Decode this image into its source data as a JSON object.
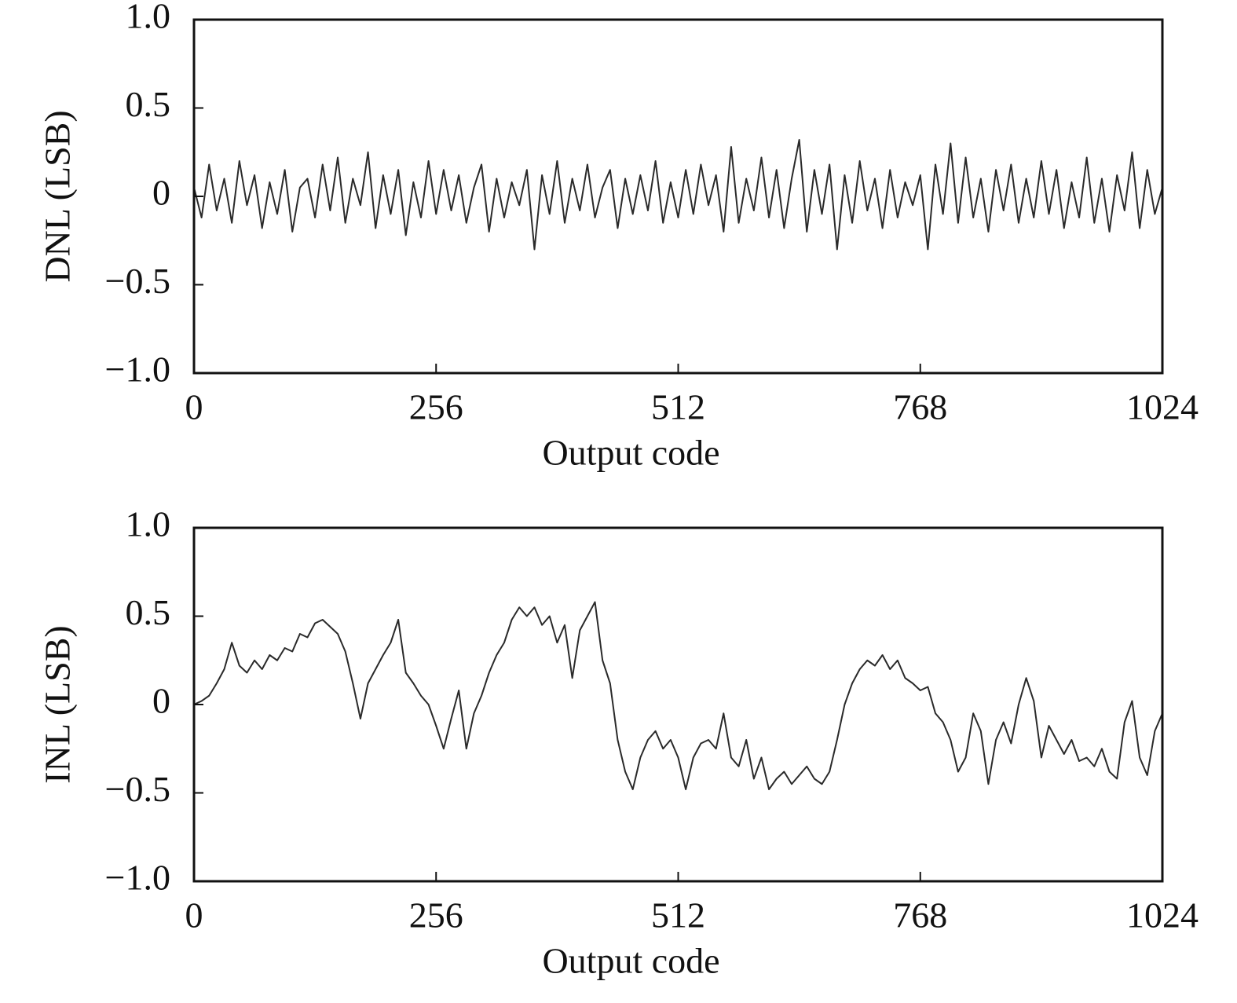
{
  "chart_data": [
    {
      "type": "line",
      "ylabel": "DNL (LSB)",
      "xlabel": "Output code",
      "color": "#2a2a2a",
      "xlim": [
        0,
        1024
      ],
      "ylim": [
        -1,
        1
      ],
      "xticks": [
        0,
        256,
        512,
        768,
        1024
      ],
      "yticks": [
        {
          "value": 1,
          "label": "1.0"
        },
        0.5,
        0,
        {
          "value": -0.5,
          "label": "−0.5"
        },
        {
          "value": -1,
          "label": "−1.0"
        }
      ],
      "x": [
        0,
        8,
        16,
        24,
        32,
        40,
        48,
        56,
        64,
        72,
        80,
        88,
        96,
        104,
        112,
        120,
        128,
        136,
        144,
        152,
        160,
        168,
        176,
        184,
        192,
        200,
        208,
        216,
        224,
        232,
        240,
        248,
        256,
        264,
        272,
        280,
        288,
        296,
        304,
        312,
        320,
        328,
        336,
        344,
        352,
        360,
        368,
        376,
        384,
        392,
        400,
        408,
        416,
        424,
        432,
        440,
        448,
        456,
        464,
        472,
        480,
        488,
        496,
        504,
        512,
        520,
        528,
        536,
        544,
        552,
        560,
        568,
        576,
        584,
        592,
        600,
        608,
        616,
        624,
        632,
        640,
        648,
        656,
        664,
        672,
        680,
        688,
        696,
        704,
        712,
        720,
        728,
        736,
        744,
        752,
        760,
        768,
        776,
        784,
        792,
        800,
        808,
        816,
        824,
        832,
        840,
        848,
        856,
        864,
        872,
        880,
        888,
        896,
        904,
        912,
        920,
        928,
        936,
        944,
        952,
        960,
        968,
        976,
        984,
        992,
        1000,
        1008,
        1016,
        1024
      ],
      "values": [
        0.05,
        -0.12,
        0.18,
        -0.08,
        0.1,
        -0.15,
        0.2,
        -0.05,
        0.12,
        -0.18,
        0.08,
        -0.1,
        0.15,
        -0.2,
        0.05,
        0.1,
        -0.12,
        0.18,
        -0.08,
        0.22,
        -0.15,
        0.1,
        -0.05,
        0.25,
        -0.18,
        0.12,
        -0.1,
        0.15,
        -0.22,
        0.08,
        -0.12,
        0.2,
        -0.1,
        0.15,
        -0.08,
        0.12,
        -0.15,
        0.05,
        0.18,
        -0.2,
        0.1,
        -0.12,
        0.08,
        -0.05,
        0.15,
        -0.3,
        0.12,
        -0.1,
        0.2,
        -0.15,
        0.1,
        -0.08,
        0.18,
        -0.12,
        0.05,
        0.15,
        -0.18,
        0.1,
        -0.1,
        0.12,
        -0.08,
        0.2,
        -0.15,
        0.08,
        -0.12,
        0.15,
        -0.1,
        0.18,
        -0.05,
        0.12,
        -0.2,
        0.28,
        -0.15,
        0.1,
        -0.08,
        0.22,
        -0.12,
        0.15,
        -0.18,
        0.1,
        0.32,
        -0.2,
        0.15,
        -0.1,
        0.18,
        -0.3,
        0.12,
        -0.15,
        0.2,
        -0.08,
        0.1,
        -0.18,
        0.15,
        -0.12,
        0.08,
        -0.05,
        0.12,
        -0.3,
        0.18,
        -0.1,
        0.3,
        -0.15,
        0.22,
        -0.12,
        0.1,
        -0.2,
        0.15,
        -0.08,
        0.18,
        -0.15,
        0.1,
        -0.12,
        0.2,
        -0.1,
        0.15,
        -0.18,
        0.08,
        -0.12,
        0.22,
        -0.15,
        0.1,
        -0.2,
        0.12,
        -0.08,
        0.25,
        -0.18,
        0.15,
        -0.1,
        0.05
      ]
    },
    {
      "type": "line",
      "ylabel": "INL (LSB)",
      "xlabel": "Output code",
      "color": "#2a2a2a",
      "xlim": [
        0,
        1024
      ],
      "ylim": [
        -1,
        1
      ],
      "xticks": [
        0,
        256,
        512,
        768,
        1024
      ],
      "yticks": [
        {
          "value": 1,
          "label": "1.0"
        },
        0.5,
        0,
        {
          "value": -0.5,
          "label": "−0.5"
        },
        {
          "value": -1,
          "label": "−1.0"
        }
      ],
      "x": [
        0,
        8,
        16,
        24,
        32,
        40,
        48,
        56,
        64,
        72,
        80,
        88,
        96,
        104,
        112,
        120,
        128,
        136,
        144,
        152,
        160,
        168,
        176,
        184,
        192,
        200,
        208,
        216,
        224,
        232,
        240,
        248,
        256,
        264,
        272,
        280,
        288,
        296,
        304,
        312,
        320,
        328,
        336,
        344,
        352,
        360,
        368,
        376,
        384,
        392,
        400,
        408,
        416,
        424,
        432,
        440,
        448,
        456,
        464,
        472,
        480,
        488,
        496,
        504,
        512,
        520,
        528,
        536,
        544,
        552,
        560,
        568,
        576,
        584,
        592,
        600,
        608,
        616,
        624,
        632,
        640,
        648,
        656,
        664,
        672,
        680,
        688,
        696,
        704,
        712,
        720,
        728,
        736,
        744,
        752,
        760,
        768,
        776,
        784,
        792,
        800,
        808,
        816,
        824,
        832,
        840,
        848,
        856,
        864,
        872,
        880,
        888,
        896,
        904,
        912,
        920,
        928,
        936,
        944,
        952,
        960,
        968,
        976,
        984,
        992,
        1000,
        1008,
        1016,
        1024
      ],
      "values": [
        0,
        0.02,
        0.05,
        0.12,
        0.2,
        0.35,
        0.22,
        0.18,
        0.25,
        0.2,
        0.28,
        0.25,
        0.32,
        0.3,
        0.4,
        0.38,
        0.46,
        0.48,
        0.44,
        0.4,
        0.3,
        0.12,
        -0.08,
        0.12,
        0.2,
        0.28,
        0.35,
        0.48,
        0.18,
        0.12,
        0.05,
        0.0,
        -0.12,
        -0.25,
        -0.08,
        0.08,
        -0.25,
        -0.05,
        0.05,
        0.18,
        0.28,
        0.35,
        0.48,
        0.55,
        0.5,
        0.55,
        0.45,
        0.5,
        0.35,
        0.45,
        0.15,
        0.42,
        0.5,
        0.58,
        0.25,
        0.12,
        -0.2,
        -0.38,
        -0.48,
        -0.3,
        -0.2,
        -0.15,
        -0.25,
        -0.2,
        -0.3,
        -0.48,
        -0.3,
        -0.22,
        -0.2,
        -0.25,
        -0.05,
        -0.3,
        -0.35,
        -0.2,
        -0.42,
        -0.3,
        -0.48,
        -0.42,
        -0.38,
        -0.45,
        -0.4,
        -0.35,
        -0.42,
        -0.45,
        -0.38,
        -0.2,
        0.0,
        0.12,
        0.2,
        0.25,
        0.22,
        0.28,
        0.2,
        0.25,
        0.15,
        0.12,
        0.08,
        0.1,
        -0.05,
        -0.1,
        -0.2,
        -0.38,
        -0.3,
        -0.05,
        -0.15,
        -0.45,
        -0.2,
        -0.1,
        -0.22,
        0.0,
        0.15,
        0.02,
        -0.3,
        -0.12,
        -0.2,
        -0.28,
        -0.2,
        -0.32,
        -0.3,
        -0.35,
        -0.25,
        -0.38,
        -0.42,
        -0.1,
        0.02,
        -0.3,
        -0.4,
        -0.15,
        -0.05
      ]
    }
  ]
}
